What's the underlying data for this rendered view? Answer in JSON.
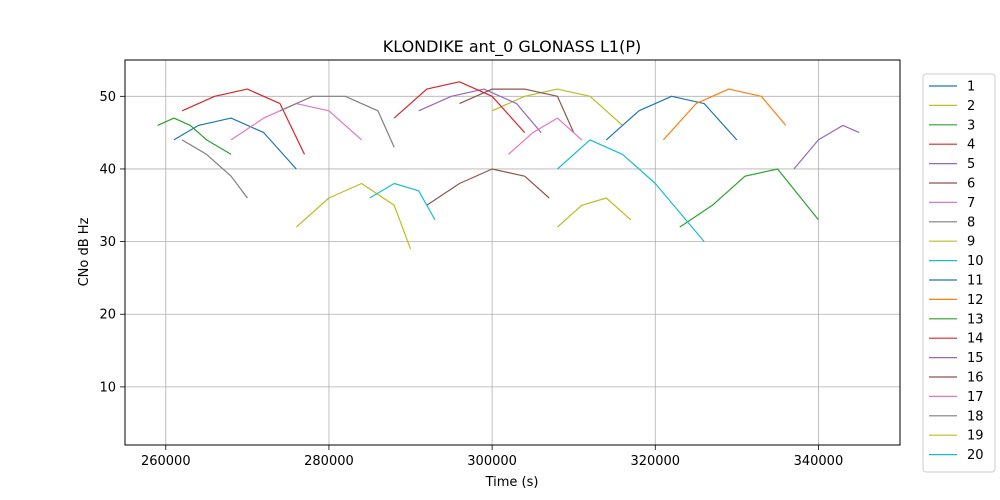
{
  "chart_data": {
    "type": "line",
    "title": "KLONDIKE ant_0 GLONASS L1(P)",
    "xlabel": "Time (s)",
    "ylabel": "CNo dB Hz",
    "xlim": [
      255000,
      350000
    ],
    "ylim": [
      2,
      55
    ],
    "xticks": [
      260000,
      280000,
      300000,
      320000,
      340000
    ],
    "yticks": [
      10,
      20,
      30,
      40,
      50
    ],
    "grid": true,
    "legend_position": "right, outside plot (partially cut off)",
    "series": [
      {
        "name": "1",
        "color": "#1f77b4",
        "x": [
          261000,
          264000,
          268000,
          272000,
          276000
        ],
        "y": [
          44,
          46,
          47,
          45,
          40
        ]
      },
      {
        "name": "2",
        "color": "#bcbd22",
        "x": [
          300000,
          304000,
          308000,
          312000,
          316000
        ],
        "y": [
          48,
          50,
          51,
          50,
          46
        ]
      },
      {
        "name": "3",
        "color": "#2ca02c",
        "x": [
          259000,
          261000,
          263000,
          265000,
          268000
        ],
        "y": [
          46,
          47,
          46,
          44,
          42
        ]
      },
      {
        "name": "4",
        "color": "#d62728",
        "x": [
          262000,
          266000,
          270000,
          274000,
          277000
        ],
        "y": [
          48,
          50,
          51,
          49,
          42
        ]
      },
      {
        "name": "5",
        "color": "#9467bd",
        "x": [
          291000,
          295000,
          299000,
          303000,
          306000
        ],
        "y": [
          48,
          50,
          51,
          49,
          45
        ]
      },
      {
        "name": "6",
        "color": "#8c564b",
        "x": [
          296000,
          300000,
          304000,
          308000,
          310000
        ],
        "y": [
          49,
          51,
          51,
          50,
          45
        ]
      },
      {
        "name": "7",
        "color": "#e377c2",
        "x": [
          268000,
          272000,
          276000,
          280000,
          284000
        ],
        "y": [
          44,
          47,
          49,
          48,
          44
        ]
      },
      {
        "name": "8",
        "color": "#7f7f7f",
        "x": [
          274000,
          278000,
          282000,
          286000,
          288000
        ],
        "y": [
          48,
          50,
          50,
          48,
          43
        ]
      },
      {
        "name": "9",
        "color": "#bcbd22",
        "x": [
          276000,
          280000,
          284000,
          288000,
          290000
        ],
        "y": [
          32,
          36,
          38,
          35,
          29
        ]
      },
      {
        "name": "10",
        "color": "#17becf",
        "x": [
          285000,
          288000,
          291000,
          293000
        ],
        "y": [
          36,
          38,
          37,
          33
        ]
      },
      {
        "name": "11",
        "color": "#1f77b4",
        "x": [
          314000,
          318000,
          322000,
          326000,
          330000
        ],
        "y": [
          44,
          48,
          50,
          49,
          44
        ]
      },
      {
        "name": "12",
        "color": "#ff7f0e",
        "x": [
          321000,
          325000,
          329000,
          333000,
          336000
        ],
        "y": [
          44,
          49,
          51,
          50,
          46
        ]
      },
      {
        "name": "13",
        "color": "#2ca02c",
        "x": [
          323000,
          327000,
          331000,
          335000,
          340000
        ],
        "y": [
          32,
          35,
          39,
          40,
          33
        ]
      },
      {
        "name": "14",
        "color": "#d62728",
        "x": [
          288000,
          292000,
          296000,
          300000,
          304000
        ],
        "y": [
          47,
          51,
          52,
          50,
          45
        ]
      },
      {
        "name": "15",
        "color": "#9467bd",
        "x": [
          337000,
          340000,
          343000,
          345000
        ],
        "y": [
          40,
          44,
          46,
          45
        ]
      },
      {
        "name": "16",
        "color": "#8c564b",
        "x": [
          292000,
          296000,
          300000,
          304000,
          307000
        ],
        "y": [
          35,
          38,
          40,
          39,
          36
        ]
      },
      {
        "name": "17",
        "color": "#e377c2",
        "x": [
          302000,
          305000,
          308000,
          311000
        ],
        "y": [
          42,
          45,
          47,
          44
        ]
      },
      {
        "name": "18",
        "color": "#7f7f7f",
        "x": [
          262000,
          265000,
          268000,
          270000
        ],
        "y": [
          44,
          42,
          39,
          36
        ]
      },
      {
        "name": "19",
        "color": "#bcbd22",
        "x": [
          308000,
          311000,
          314000,
          317000
        ],
        "y": [
          32,
          35,
          36,
          33
        ]
      },
      {
        "name": "20",
        "color": "#17becf",
        "x": [
          308000,
          312000,
          316000,
          320000,
          326000
        ],
        "y": [
          40,
          44,
          42,
          38,
          30
        ]
      }
    ]
  }
}
